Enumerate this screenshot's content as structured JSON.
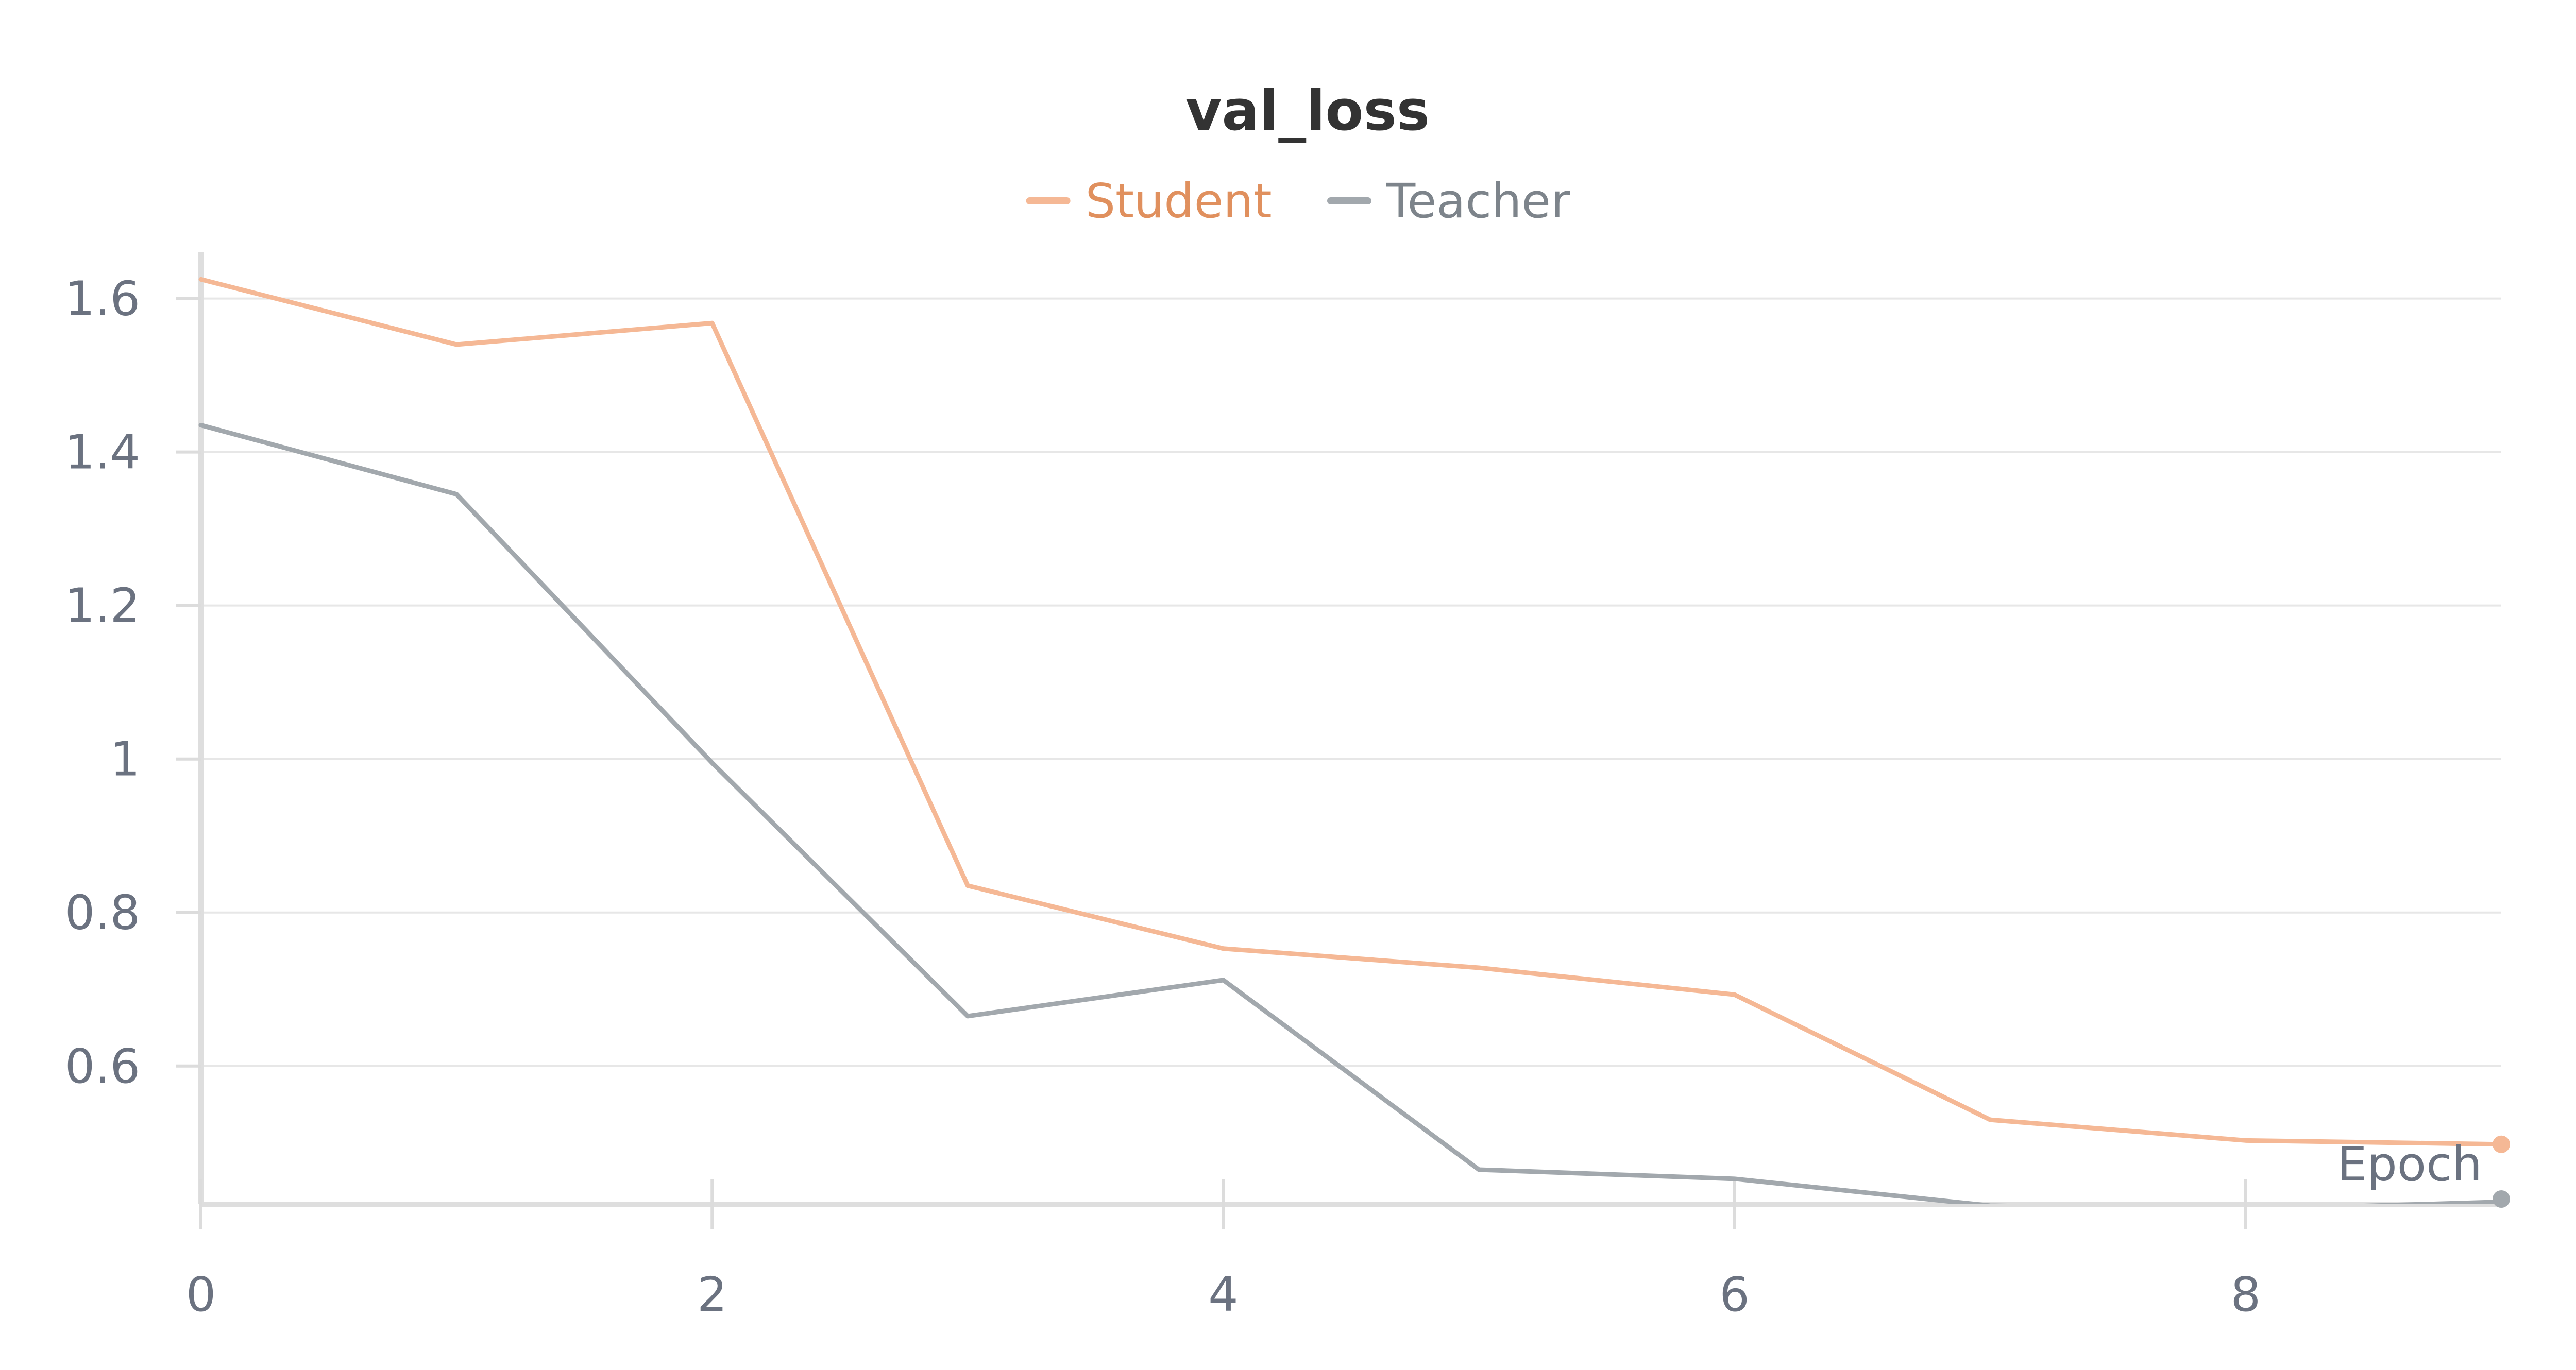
{
  "chart_data": {
    "type": "line",
    "title": "val_loss",
    "xlabel": "Epoch",
    "ylabel": "",
    "x": [
      0,
      1,
      2,
      3,
      4,
      5,
      6,
      7,
      8,
      9
    ],
    "series": [
      {
        "name": "Student",
        "color": "#f5b895",
        "legend_text_color": "#e0905e",
        "values": [
          1.625,
          1.54,
          1.568,
          0.835,
          0.753,
          0.728,
          0.693,
          0.53,
          0.503,
          0.498
        ]
      },
      {
        "name": "Teacher",
        "color": "#a2a8ad",
        "legend_text_color": "#7d848b",
        "values": [
          1.435,
          1.345,
          0.995,
          0.665,
          0.712,
          0.465,
          0.453,
          0.418,
          0.413,
          0.423
        ]
      }
    ],
    "xlim": [
      0,
      9
    ],
    "ylim": [
      0.42,
      1.64
    ],
    "x_ticks": [
      0,
      2,
      4,
      6,
      8
    ],
    "x_tick_labels": [
      "0",
      "2",
      "4",
      "6",
      "8"
    ],
    "y_ticks": [
      0.6,
      0.8,
      1.0,
      1.2,
      1.4,
      1.6
    ],
    "y_tick_labels": [
      "0.6",
      "0.8",
      "1",
      "1.2",
      "1.4",
      "1.6"
    ],
    "grid": true,
    "legend_position": "top-center"
  }
}
